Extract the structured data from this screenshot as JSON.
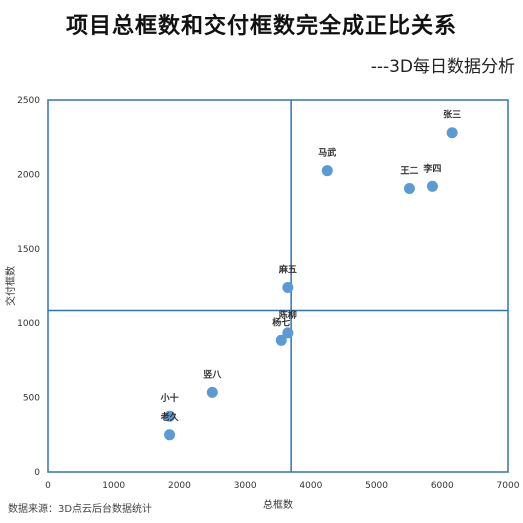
{
  "title": "项目总框数和交付框数完全成正比关系",
  "subtitle": "---3D每日数据分析",
  "source": "数据来源：3D点云后台数据统计",
  "chart_data": {
    "type": "scatter",
    "title": "项目总框数和交付框数完全成正比关系",
    "xlabel": "总框数",
    "ylabel": "交付框数",
    "xlim": [
      0,
      7000
    ],
    "ylim": [
      0,
      2500
    ],
    "xticks": [
      0,
      1000,
      2000,
      3000,
      4000,
      5000,
      6000,
      7000
    ],
    "yticks": [
      0,
      500,
      1000,
      1500,
      2000,
      2500
    ],
    "grid": false,
    "reference_lines": {
      "x": 3700,
      "y": 1085
    },
    "point_color": "#5b9bd5",
    "frame_color": "#2e75b6",
    "points": [
      {
        "label": "张三",
        "x": 6150,
        "y": 2280
      },
      {
        "label": "马武",
        "x": 4250,
        "y": 2025
      },
      {
        "label": "王二",
        "x": 5500,
        "y": 1905
      },
      {
        "label": "李四",
        "x": 5850,
        "y": 1920
      },
      {
        "label": "麻五",
        "x": 3650,
        "y": 1240
      },
      {
        "label": "陈柳",
        "x": 3650,
        "y": 935
      },
      {
        "label": "杨七",
        "x": 3550,
        "y": 885
      },
      {
        "label": "竖八",
        "x": 2500,
        "y": 535
      },
      {
        "label": "小十",
        "x": 1850,
        "y": 375
      },
      {
        "label": "老久",
        "x": 1850,
        "y": 250
      }
    ]
  }
}
